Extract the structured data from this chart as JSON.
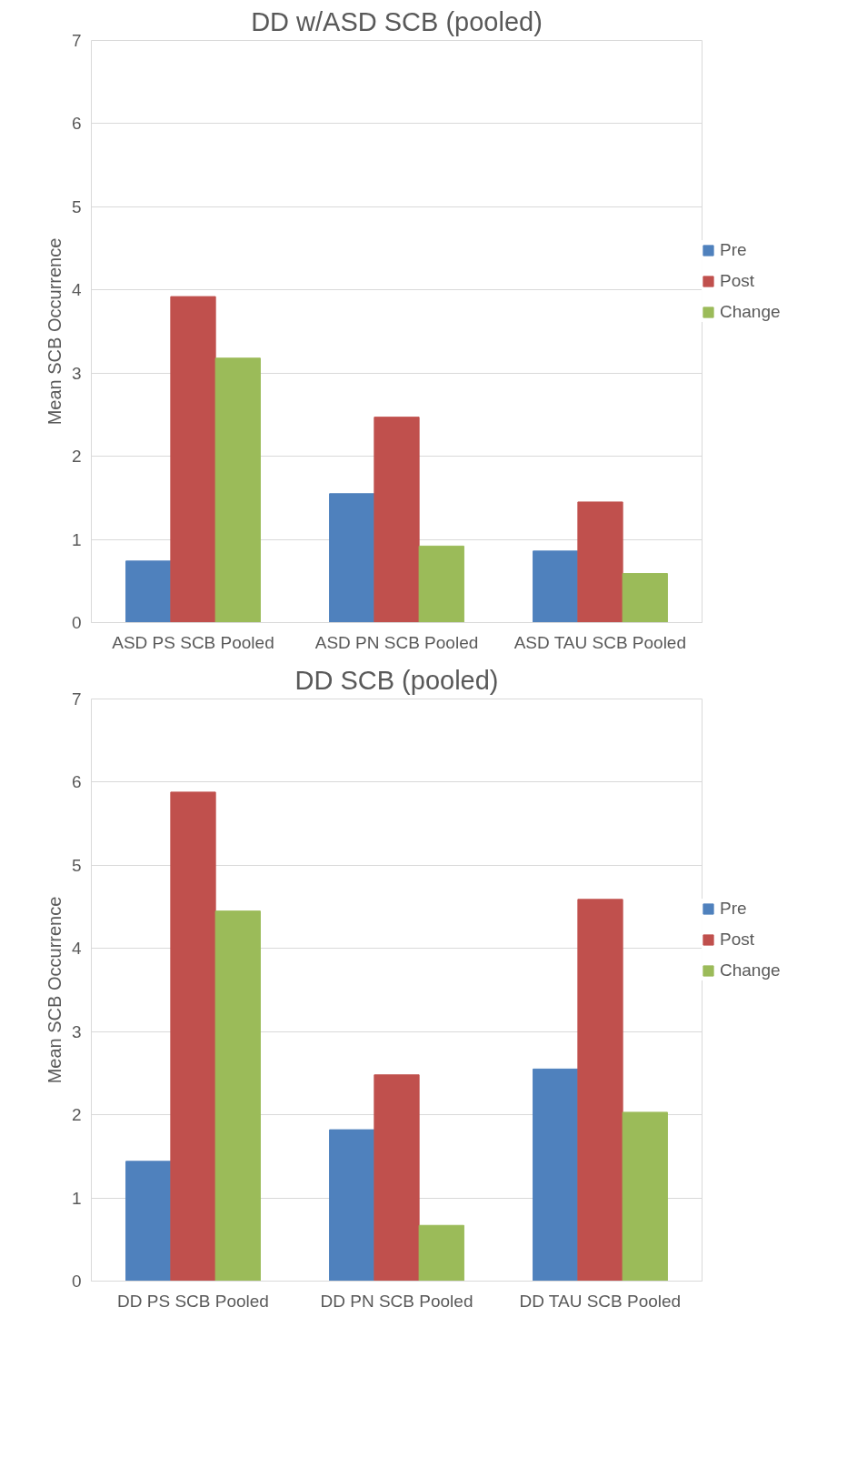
{
  "chart_data": [
    {
      "type": "bar",
      "title": "DD w/ASD SCB (pooled)",
      "ylabel": "Mean SCB Occurrence",
      "categories": [
        "ASD PS SCB Pooled",
        "ASD PN SCB Pooled",
        "ASD TAU SCB Pooled"
      ],
      "series": [
        {
          "name": "Pre",
          "color": "#4f81bd",
          "values": [
            0.74,
            1.55,
            0.86
          ]
        },
        {
          "name": "Post",
          "color": "#c0504d",
          "values": [
            3.92,
            2.47,
            1.45
          ]
        },
        {
          "name": "Change",
          "color": "#9bbb59",
          "values": [
            3.18,
            0.92,
            0.59
          ]
        }
      ],
      "ylim": [
        0,
        7
      ],
      "yticks": [
        0,
        1,
        2,
        3,
        4,
        5,
        6,
        7
      ],
      "grid": "y",
      "legend": "right"
    },
    {
      "type": "bar",
      "title": "DD SCB (pooled)",
      "ylabel": "Mean SCB Occurrence",
      "categories": [
        "DD PS SCB Pooled",
        "DD PN SCB Pooled",
        "DD TAU SCB Pooled"
      ],
      "series": [
        {
          "name": "Pre",
          "color": "#4f81bd",
          "values": [
            1.44,
            1.82,
            2.55
          ]
        },
        {
          "name": "Post",
          "color": "#c0504d",
          "values": [
            5.88,
            2.48,
            4.59
          ]
        },
        {
          "name": "Change",
          "color": "#9bbb59",
          "values": [
            4.45,
            0.67,
            2.03
          ]
        }
      ],
      "ylim": [
        0,
        7
      ],
      "yticks": [
        0,
        1,
        2,
        3,
        4,
        5,
        6,
        7
      ],
      "grid": "y",
      "legend": "right"
    }
  ]
}
